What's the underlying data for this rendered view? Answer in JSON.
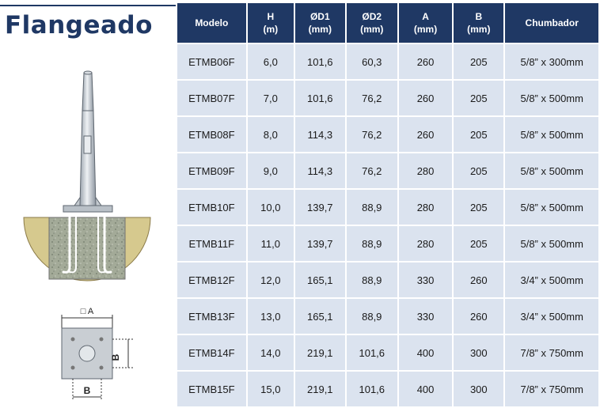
{
  "title": "Flangeado",
  "table": {
    "headers": [
      {
        "line1": "Modelo",
        "line2": ""
      },
      {
        "line1": "H",
        "line2": "(m)"
      },
      {
        "line1": "ØD1",
        "line2": "(mm)"
      },
      {
        "line1": "ØD2",
        "line2": "(mm)"
      },
      {
        "line1": "A",
        "line2": "(mm)"
      },
      {
        "line1": "B",
        "line2": "(mm)"
      },
      {
        "line1": "Chumbador",
        "line2": ""
      }
    ],
    "rows": [
      [
        "ETMB06F",
        "6,0",
        "101,6",
        "60,3",
        "260",
        "205",
        "5/8” x 300mm"
      ],
      [
        "ETMB07F",
        "7,0",
        "101,6",
        "76,2",
        "260",
        "205",
        "5/8” x 500mm"
      ],
      [
        "ETMB08F",
        "8,0",
        "114,3",
        "76,2",
        "260",
        "205",
        "5/8” x 500mm"
      ],
      [
        "ETMB09F",
        "9,0",
        "114,3",
        "76,2",
        "280",
        "205",
        "5/8” x 500mm"
      ],
      [
        "ETMB10F",
        "10,0",
        "139,7",
        "88,9",
        "280",
        "205",
        "5/8” x 500mm"
      ],
      [
        "ETMB11F",
        "11,0",
        "139,7",
        "88,9",
        "280",
        "205",
        "5/8” x 500mm"
      ],
      [
        "ETMB12F",
        "12,0",
        "165,1",
        "88,9",
        "330",
        "260",
        "3/4” x 500mm"
      ],
      [
        "ETMB13F",
        "13,0",
        "165,1",
        "88,9",
        "330",
        "260",
        "3/4” x 500mm"
      ],
      [
        "ETMB14F",
        "14,0",
        "219,1",
        "101,6",
        "400",
        "300",
        "7/8” x 750mm"
      ],
      [
        "ETMB15F",
        "15,0",
        "219,1",
        "101,6",
        "400",
        "300",
        "7/8” x 750mm"
      ]
    ]
  },
  "diagram": {
    "label_a": "□ A",
    "label_b_side": "B",
    "label_b_bottom": "B"
  },
  "colors": {
    "header_bg": "#1f3864",
    "cell_bg": "#dbe3ef",
    "title": "#1f3864"
  }
}
